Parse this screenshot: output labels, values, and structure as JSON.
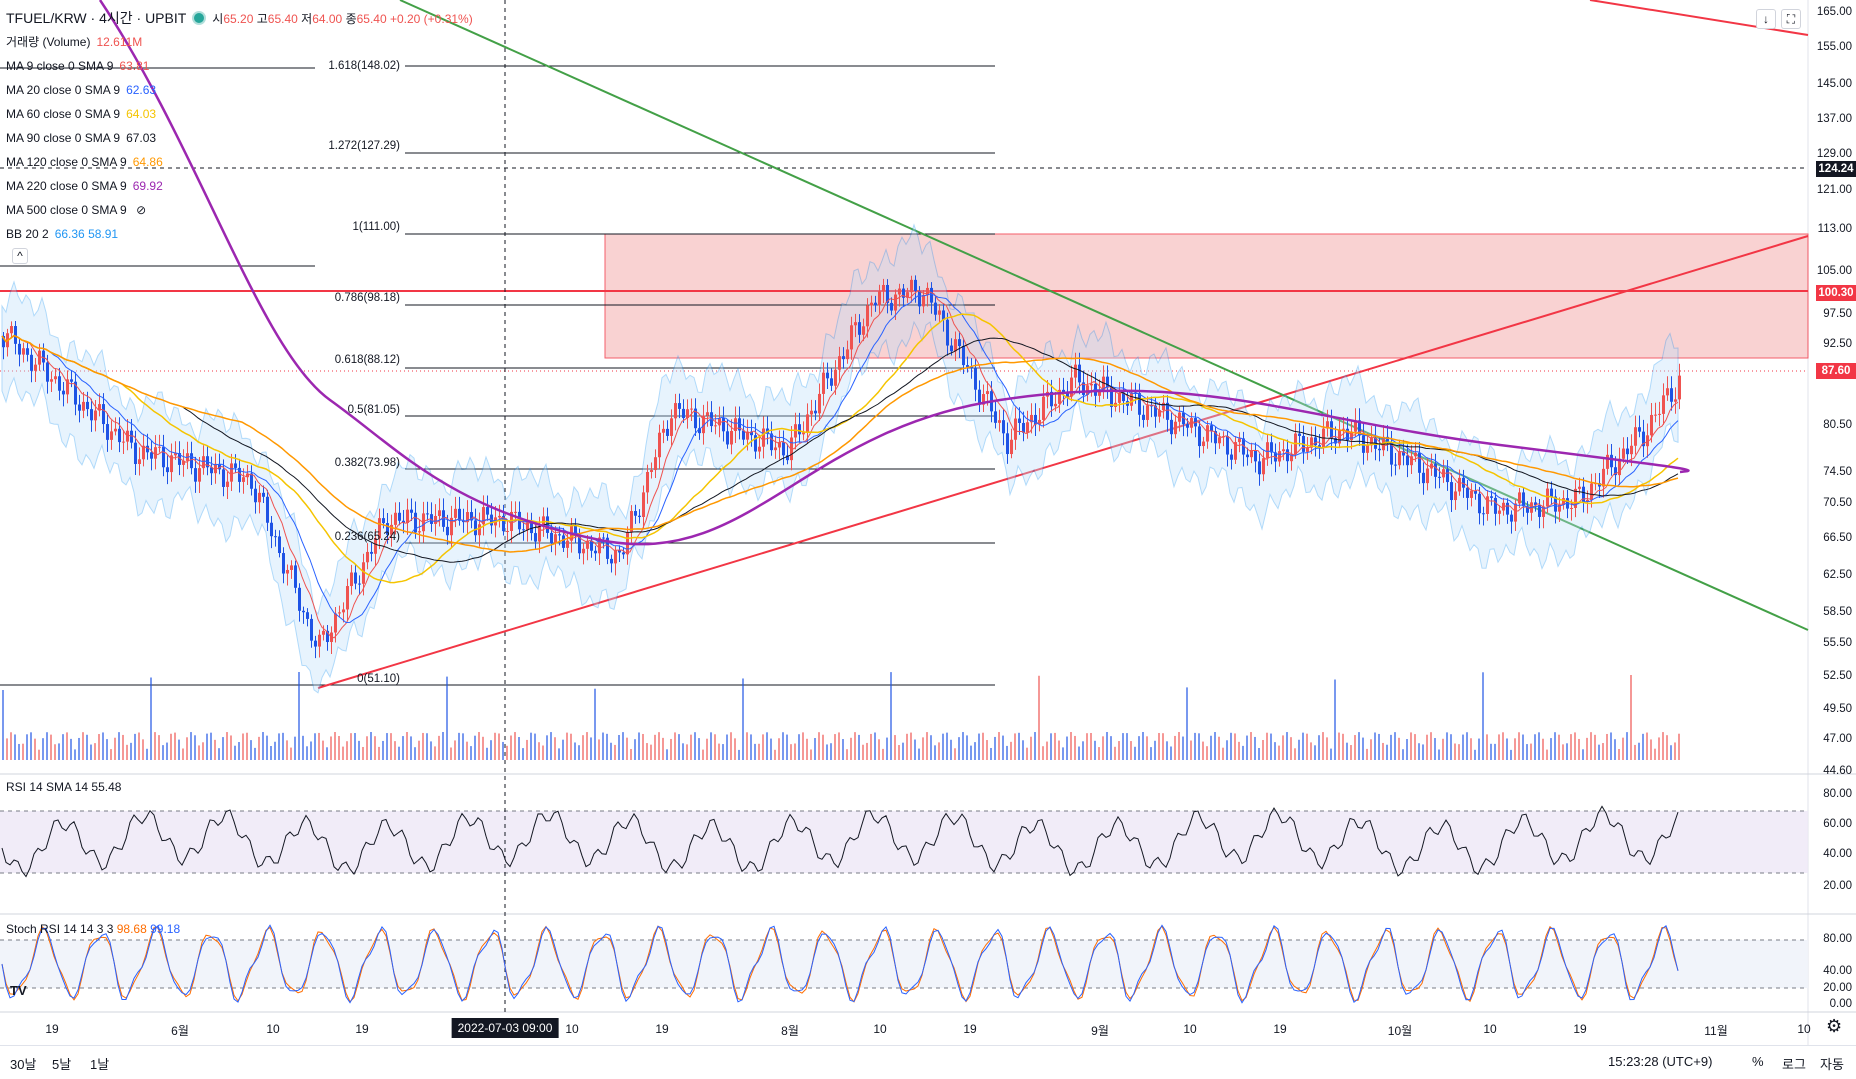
{
  "header": {
    "symbol": "TFUEL/KRW · 4시간 · UPBIT",
    "open_label": "시",
    "open": "65.20",
    "high_label": "고",
    "high": "65.40",
    "low_label": "저",
    "low": "64.00",
    "close_label": "종",
    "close": "65.40",
    "change": "+0.20 (+0.31%)"
  },
  "indicators": [
    {
      "label": "거래량 (Volume)",
      "value": "12.611M",
      "color": "#ef5350"
    },
    {
      "label": "MA 9 close 0 SMA 9",
      "value": "63.81",
      "color": "#ef5350"
    },
    {
      "label": "MA 20 close 0 SMA 9",
      "value": "62.63",
      "color": "#2962ff"
    },
    {
      "label": "MA 60 close 0 SMA 9",
      "value": "64.03",
      "color": "#f5c400"
    },
    {
      "label": "MA 90 close 0 SMA 9",
      "value": "67.03",
      "color": "#131722"
    },
    {
      "label": "MA 120 close 0 SMA 9",
      "value": "64.86",
      "color": "#ff9800"
    },
    {
      "label": "MA 220 close 0 SMA 9",
      "value": "69.92",
      "color": "#9c27b0"
    },
    {
      "label": "MA 500 close 0 SMA 9",
      "value": "",
      "color": "#b2b5be"
    },
    {
      "label": "BB 20 2",
      "value": "66.36 58.91",
      "color": "#2196f3"
    }
  ],
  "price_axis": [
    "165.00",
    "155.00",
    "145.00",
    "137.00",
    "129.00",
    "121.00",
    "113.00",
    "105.00",
    "97.50",
    "92.50",
    "87.60",
    "80.50",
    "74.50",
    "70.50",
    "66.50",
    "62.50",
    "58.50",
    "55.50",
    "52.50",
    "49.50",
    "47.00",
    "44.60"
  ],
  "price_tags": {
    "crosshair": "124.24",
    "line": "100.30",
    "last": "87.60"
  },
  "fib_levels": [
    {
      "label": "1.618(148.02)"
    },
    {
      "label": "1.272(127.29)"
    },
    {
      "label": "1(111.00)"
    },
    {
      "label": "0.786(98.18)"
    },
    {
      "label": "0.618(88.12)"
    },
    {
      "label": "0.5(81.05)"
    },
    {
      "label": "0.382(73.98)"
    },
    {
      "label": "0.236(65.24)"
    },
    {
      "label": "0(51.10)"
    }
  ],
  "rsi": {
    "label": "RSI 14 SMA 14",
    "value": "55.48",
    "axis": [
      "80.00",
      "60.00",
      "40.00",
      "20.00"
    ]
  },
  "stoch": {
    "label": "Stoch RSI 14 14 3 3",
    "k": "98.68",
    "d": "99.18",
    "axis": [
      "80.00",
      "40.00",
      "20.00",
      "0.00"
    ]
  },
  "time_axis": [
    "19",
    "6월",
    "10",
    "19",
    "10",
    "19",
    "8월",
    "10",
    "19",
    "9월",
    "10",
    "19",
    "10월",
    "10",
    "19",
    "11월",
    "10"
  ],
  "crosshair_time": "2022-07-03   09:00",
  "bottom": {
    "ranges": [
      "30날",
      "5날",
      "1날"
    ],
    "clock": "15:23:28 (UTC+9)",
    "pct": "%",
    "log": "로그",
    "auto": "자동"
  },
  "colors": {
    "up": "#ef5350",
    "down": "#1e53e5",
    "fib_zone": "#f8c8c8",
    "trend_red": "#f23645",
    "trend_green": "#43a047",
    "ma220": "#9c27b0"
  }
}
